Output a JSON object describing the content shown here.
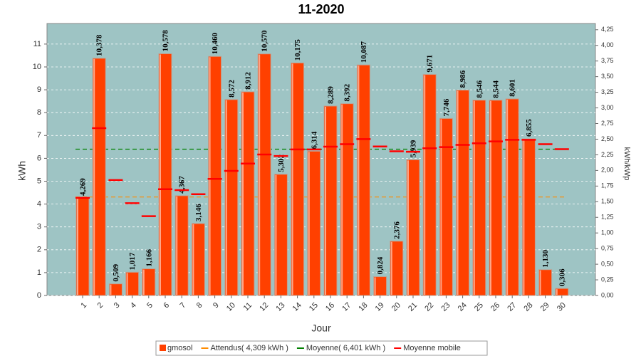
{
  "chart_data": {
    "type": "bar",
    "title": "11-2020",
    "x_label": "Jour",
    "y_label": "kWh",
    "y2_label": "kWh/kWp",
    "categories": [
      "1",
      "2",
      "3",
      "4",
      "5",
      "6",
      "7",
      "8",
      "9",
      "10",
      "11",
      "12",
      "13",
      "14",
      "15",
      "16",
      "17",
      "18",
      "19",
      "20",
      "21",
      "22",
      "23",
      "24",
      "25",
      "26",
      "27",
      "28",
      "29",
      "30"
    ],
    "series": [
      {
        "name": "gmosol",
        "color": "#ff4000",
        "values": [
          4.269,
          10.378,
          0.509,
          1.017,
          1.166,
          10.578,
          4.367,
          3.146,
          10.46,
          8.572,
          8.912,
          10.57,
          5.302,
          10.175,
          6.314,
          8.289,
          8.392,
          10.087,
          0.824,
          2.376,
          5.939,
          9.671,
          7.746,
          8.986,
          8.546,
          8.544,
          8.601,
          6.855,
          1.13,
          0.306
        ],
        "value_labels": [
          "4,269",
          "10,378",
          "0,509",
          "1,017",
          "1,166",
          "10,578",
          "4,367",
          "3,146",
          "10,460",
          "8,572",
          "8,912",
          "10,570",
          "5,302",
          "10,175",
          "6,314",
          "8,289",
          "8,392",
          "10,087",
          "0,824",
          "2,376",
          "5,939",
          "9,671",
          "7,746",
          "8,986",
          "8,546",
          "8,544",
          "8,601",
          "6,855",
          "1,130",
          "0,306"
        ]
      },
      {
        "name": "Moyenne mobile",
        "color": "#ff0000",
        "style": "dash",
        "values": [
          4.27,
          7.32,
          5.05,
          4.04,
          3.47,
          4.65,
          4.61,
          4.43,
          5.1,
          5.45,
          5.77,
          6.17,
          6.1,
          6.39,
          6.39,
          6.51,
          6.62,
          6.84,
          6.52,
          6.31,
          6.29,
          6.44,
          6.49,
          6.59,
          6.66,
          6.74,
          6.81,
          6.81,
          6.62,
          6.4
        ]
      }
    ],
    "reference_lines": [
      {
        "name": "Attendus( 4,309 kWh )",
        "value": 4.309,
        "color": "#ff8c00"
      },
      {
        "name": "Moyenne( 6,401 kWh )",
        "value": 6.401,
        "color": "#008000"
      }
    ],
    "ylim": [
      0,
      11.9
    ],
    "yticks": [
      0,
      1,
      2,
      3,
      4,
      5,
      6,
      7,
      8,
      9,
      10,
      11
    ],
    "y2lim": [
      0,
      4.35
    ],
    "y2ticks": [
      {
        "value": 0,
        "label": "0,00"
      },
      {
        "value": 0.25,
        "label": "0,25"
      },
      {
        "value": 0.5,
        "label": "0,50"
      },
      {
        "value": 0.75,
        "label": "0,75"
      },
      {
        "value": 1,
        "label": "1,00"
      },
      {
        "value": 1.25,
        "label": "1,25"
      },
      {
        "value": 1.5,
        "label": "1,50"
      },
      {
        "value": 1.75,
        "label": "1,75"
      },
      {
        "value": 2,
        "label": "2,00"
      },
      {
        "value": 2.25,
        "label": "2,25"
      },
      {
        "value": 2.5,
        "label": "2,50"
      },
      {
        "value": 2.75,
        "label": "2,75"
      },
      {
        "value": 3,
        "label": "3,00"
      },
      {
        "value": 3.25,
        "label": "3,25"
      },
      {
        "value": 3.5,
        "label": "3,50"
      },
      {
        "value": 3.75,
        "label": "3,75"
      },
      {
        "value": 4,
        "label": "4,00"
      },
      {
        "value": 4.25,
        "label": "4,25"
      }
    ],
    "grid": true,
    "legend": "bottom"
  }
}
